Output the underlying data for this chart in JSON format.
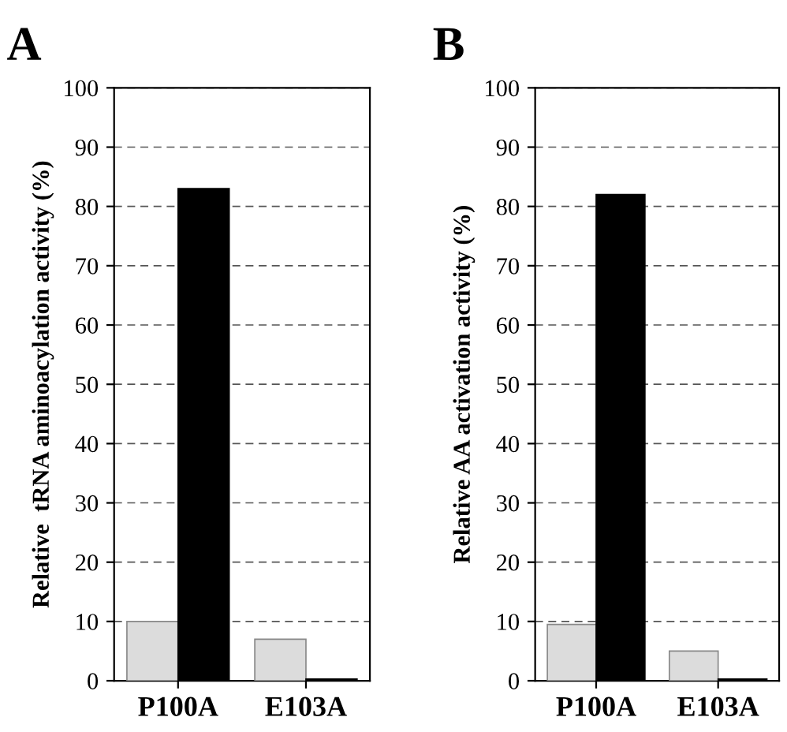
{
  "chart_data": [
    {
      "type": "bar",
      "title": "A",
      "ylabel": "Relative  tRNA aminoacylation activity (%)",
      "categories": [
        "P100A",
        "E103A"
      ],
      "series": [
        {
          "color": "#dcdcdc",
          "values": [
            10,
            7
          ]
        },
        {
          "color": "#000000",
          "values": [
            83,
            0.3
          ]
        }
      ],
      "ylim": [
        0,
        100
      ],
      "yticks": [
        0,
        10,
        20,
        30,
        40,
        50,
        60,
        70,
        80,
        90,
        100
      ],
      "grid": "y",
      "line_style": "dashed",
      "legend": false
    },
    {
      "type": "bar",
      "title": "B",
      "ylabel": "Relative AA activation activity (%)",
      "categories": [
        "P100A",
        "E103A"
      ],
      "series": [
        {
          "color": "#dcdcdc",
          "values": [
            9.5,
            5
          ]
        },
        {
          "color": "#000000",
          "values": [
            82,
            0.3
          ]
        }
      ],
      "ylim": [
        0,
        100
      ],
      "yticks": [
        0,
        10,
        20,
        30,
        40,
        50,
        60,
        70,
        80,
        90,
        100
      ],
      "grid": "y",
      "line_style": "dashed",
      "legend": false
    }
  ]
}
